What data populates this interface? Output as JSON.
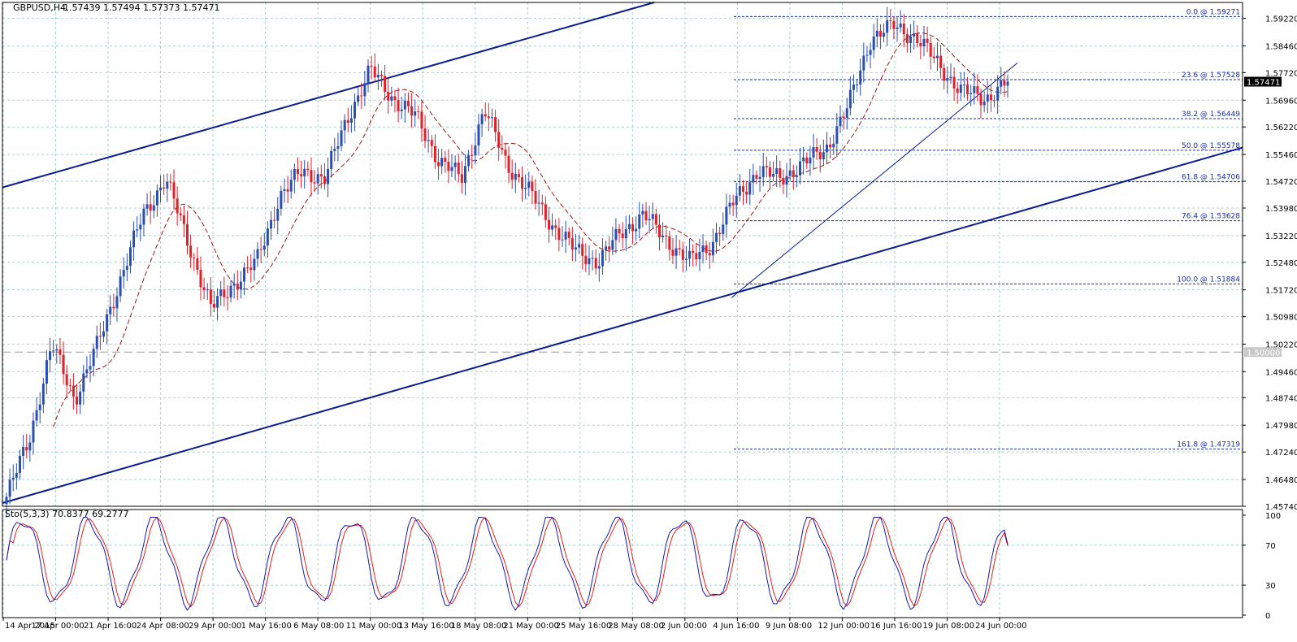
{
  "header": {
    "symbol_label": "GBPUSD,H4",
    "ohlc_text": "1.57439 1.57494 1.57373 1.57471"
  },
  "price_axis": {
    "ticks": [
      "1.59220",
      "1.58460",
      "1.57720",
      "1.56960",
      "1.56220",
      "1.55460",
      "1.54720",
      "1.53980",
      "1.53220",
      "1.52480",
      "1.51720",
      "1.50980",
      "1.50220",
      "1.49460",
      "1.48740",
      "1.47980",
      "1.47240",
      "1.46480",
      "1.45740"
    ],
    "current_price_label": "1.57471",
    "level_label": "1.50000"
  },
  "time_axis": {
    "labels": [
      "14 Apr 2015",
      "17 Apr 00:00",
      "21 Apr 16:00",
      "24 Apr 08:00",
      "29 Apr 00:00",
      "1 May 16:00",
      "6 May 08:00",
      "11 May 00:00",
      "13 May 16:00",
      "18 May 08:00",
      "21 May 00:00",
      "25 May 16:00",
      "28 May 08:00",
      "2 Jun 00:00",
      "4 Jun 16:00",
      "9 Jun 08:00",
      "12 Jun 00:00",
      "16 Jun 16:00",
      "19 Jun 08:00",
      "24 Jun 00:00"
    ]
  },
  "fibonacci": {
    "levels": [
      {
        "label": "0.0 @ 1.59271",
        "price": 1.59271
      },
      {
        "label": "23.6 @ 1.57528",
        "price": 1.57528
      },
      {
        "label": "38.2 @ 1.56449",
        "price": 1.56449
      },
      {
        "label": "50.0 @ 1.55578",
        "price": 1.55578
      },
      {
        "label": "61.8 @ 1.54706",
        "price": 1.54706
      },
      {
        "label": "76.4 @ 1.53628",
        "price": 1.53628
      },
      {
        "label": "100.0 @ 1.51884",
        "price": 1.51884
      },
      {
        "label": "161.8 @ 1.47319",
        "price": 1.47319
      }
    ]
  },
  "stochastic": {
    "title": "Sto(5,3,3) 70.8377 69.2777",
    "ticks": [
      "100",
      "70",
      "30",
      "0"
    ]
  },
  "colors": {
    "bull_candle": "#2b4fb0",
    "bear_candle": "#e0202a",
    "channel_line": "#0b1d8c",
    "fib_line": "#1a2a9c",
    "moving_average": "#9b1c1c",
    "grid": "#9fd3d3",
    "stoch_main": "#1a1aa8",
    "stoch_signal": "#e02020"
  },
  "chart_data": {
    "type": "candlestick",
    "symbol": "GBPUSD",
    "timeframe": "H4",
    "ylim": [
      1.4574,
      1.5966
    ],
    "anchors": [
      {
        "t": "14 Apr 2015",
        "price": 1.46
      },
      {
        "t": "15 Apr",
        "price": 1.476
      },
      {
        "t": "17 Apr 00:00",
        "price": 1.502
      },
      {
        "t": "20 Apr",
        "price": 1.487
      },
      {
        "t": "21 Apr 16:00",
        "price": 1.502
      },
      {
        "t": "23 Apr",
        "price": 1.52
      },
      {
        "t": "27 Apr",
        "price": 1.538
      },
      {
        "t": "29 Apr 00:00",
        "price": 1.548
      },
      {
        "t": "30 Apr",
        "price": 1.53
      },
      {
        "t": "1 May 16:00",
        "price": 1.512
      },
      {
        "t": "5 May",
        "price": 1.519
      },
      {
        "t": "6 May 08:00",
        "price": 1.525
      },
      {
        "t": "7 May",
        "price": 1.543
      },
      {
        "t": "8 May",
        "price": 1.55
      },
      {
        "t": "11 May 00:00",
        "price": 1.548
      },
      {
        "t": "12 May",
        "price": 1.565
      },
      {
        "t": "13 May 16:00",
        "price": 1.578
      },
      {
        "t": "14 May",
        "price": 1.57
      },
      {
        "t": "15 May",
        "price": 1.565
      },
      {
        "t": "18 May 08:00",
        "price": 1.553
      },
      {
        "t": "19 May",
        "price": 1.548
      },
      {
        "t": "21 May 00:00",
        "price": 1.567
      },
      {
        "t": "22 May",
        "price": 1.552
      },
      {
        "t": "25 May 16:00",
        "price": 1.544
      },
      {
        "t": "27 May",
        "price": 1.535
      },
      {
        "t": "28 May 08:00",
        "price": 1.528
      },
      {
        "t": "29 May",
        "price": 1.525
      },
      {
        "t": "2 Jun 00:00",
        "price": 1.533
      },
      {
        "t": "3 Jun",
        "price": 1.538
      },
      {
        "t": "4 Jun 16:00",
        "price": 1.531
      },
      {
        "t": "5 Jun",
        "price": 1.525
      },
      {
        "t": "8 Jun",
        "price": 1.53
      },
      {
        "t": "9 Jun 08:00",
        "price": 1.542
      },
      {
        "t": "10 Jun",
        "price": 1.55
      },
      {
        "t": "11 Jun",
        "price": 1.548
      },
      {
        "t": "12 Jun 00:00",
        "price": 1.552
      },
      {
        "t": "15 Jun",
        "price": 1.556
      },
      {
        "t": "16 Jun 16:00",
        "price": 1.568
      },
      {
        "t": "17 Jun",
        "price": 1.587
      },
      {
        "t": "18 Jun",
        "price": 1.59
      },
      {
        "t": "19 Jun 08:00",
        "price": 1.587
      },
      {
        "t": "22 Jun",
        "price": 1.579
      },
      {
        "t": "23 Jun",
        "price": 1.572
      },
      {
        "t": "24 Jun 00:00",
        "price": 1.57
      },
      {
        "t": "25 Jun",
        "price": 1.5747
      }
    ],
    "last": {
      "open": 1.57439,
      "high": 1.57494,
      "low": 1.57373,
      "close": 1.57471
    },
    "horizontal_level": 1.5,
    "indicator": {
      "name": "Stochastic",
      "params": "5,3,3",
      "main": 70.8377,
      "signal": 69.2777,
      "levels": [
        30,
        70
      ],
      "ylim": [
        0,
        100
      ]
    }
  }
}
